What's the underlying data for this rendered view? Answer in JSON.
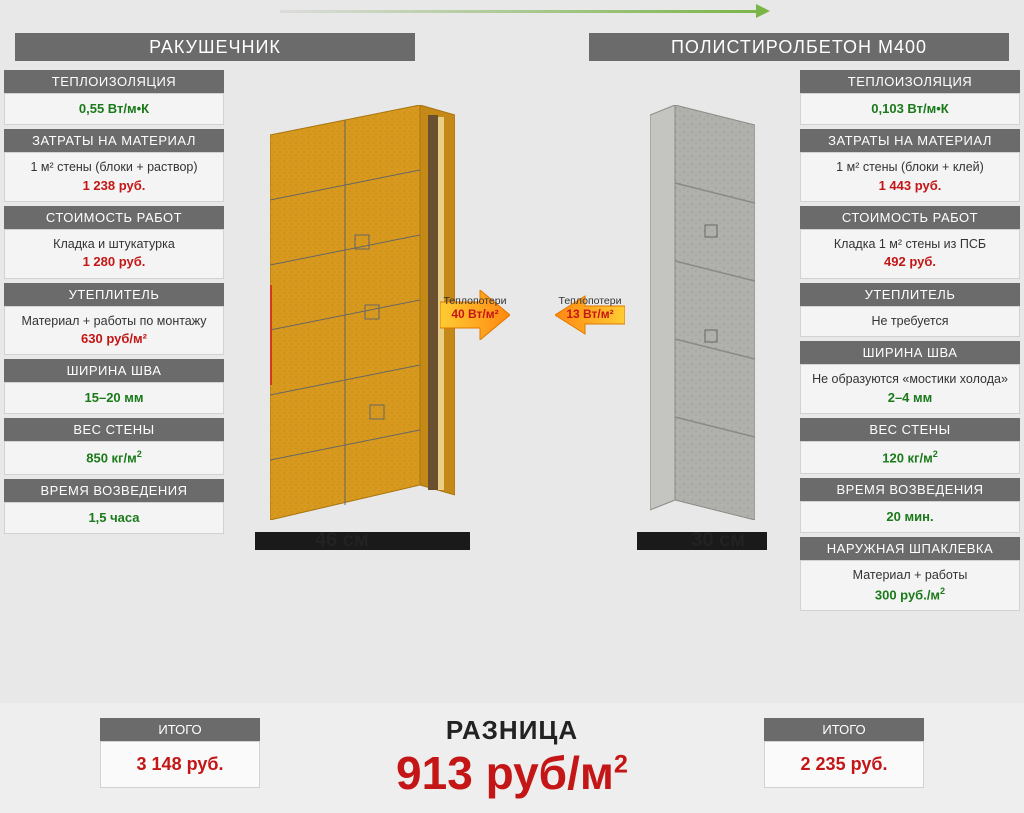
{
  "colors": {
    "headerBg": "#6b6b6b",
    "headerText": "#ffffff",
    "bodyBg": "#f4f4f4",
    "green": "#1a7a1a",
    "red": "#c41616",
    "black": "#1a1a1a",
    "brick": "#d89a1e",
    "brickStroke": "#a8730f",
    "concrete": "#b0b0ac",
    "concreteStroke": "#8a8a86",
    "pageBg": "#e8e8e8"
  },
  "left": {
    "title": "РАКУШЕЧНИК",
    "specs": [
      {
        "header": "ТЕПЛОИЗОЛЯЦИЯ",
        "value": "0,55 Вт/м•К"
      },
      {
        "header": "ЗАТРАТЫ НА МАТЕРИАЛ",
        "desc": "1 м² стены (блоки + раствор)",
        "price": "1 238 руб."
      },
      {
        "header": "СТОИМОСТЬ РАБОТ",
        "desc": "Кладка и штукатурка",
        "price": "1 280 руб."
      },
      {
        "header": "УТЕПЛИТЕЛЬ",
        "desc": "Материал + работы по монтажу",
        "price": "630 руб/м²"
      },
      {
        "header": "ШИРИНА ШВА",
        "value": "15–20 мм"
      },
      {
        "header": "ВЕС СТЕНЫ",
        "value": "850 кг/м²"
      },
      {
        "header": "ВРЕМЯ ВОЗВЕДЕНИЯ",
        "value": "1,5 часа"
      }
    ],
    "width": "46 см",
    "heat": {
      "label": "Теплопотери",
      "value": "40 Вт/м²"
    },
    "total": {
      "label": "ИТОГО",
      "value": "3 148 руб."
    }
  },
  "right": {
    "title": "ПОЛИСТИРОЛБЕТОН М400",
    "specs": [
      {
        "header": "ТЕПЛОИЗОЛЯЦИЯ",
        "value": "0,103  Вт/м•К"
      },
      {
        "header": "ЗАТРАТЫ НА МАТЕРИАЛ",
        "desc": "1 м² стены (блоки + клей)",
        "price": "1 443 руб."
      },
      {
        "header": "СТОИМОСТЬ РАБОТ",
        "desc": "Кладка 1 м² стены из ПСБ",
        "price": "492 руб."
      },
      {
        "header": "УТЕПЛИТЕЛЬ",
        "desc": "Не требуется"
      },
      {
        "header": "ШИРИНА ШВА",
        "desc": "Не образуются «мостики холода»",
        "value": "2–4 мм"
      },
      {
        "header": "ВЕС СТЕНЫ",
        "value": "120 кг/м²"
      },
      {
        "header": "ВРЕМЯ ВОЗВЕДЕНИЯ",
        "value": "20 мин."
      },
      {
        "header": "НАРУЖНАЯ ШПАКЛЕВКА",
        "desc": "Материал + работы",
        "value": "300 руб./м²"
      }
    ],
    "width": "30 см",
    "heat": {
      "label": "Теплопотери",
      "value": "13 Вт/м²"
    },
    "total": {
      "label": "ИТОГО",
      "value": "2 235 руб."
    }
  },
  "difference": {
    "label": "РАЗНИЦА",
    "value": "913 руб/м²"
  }
}
